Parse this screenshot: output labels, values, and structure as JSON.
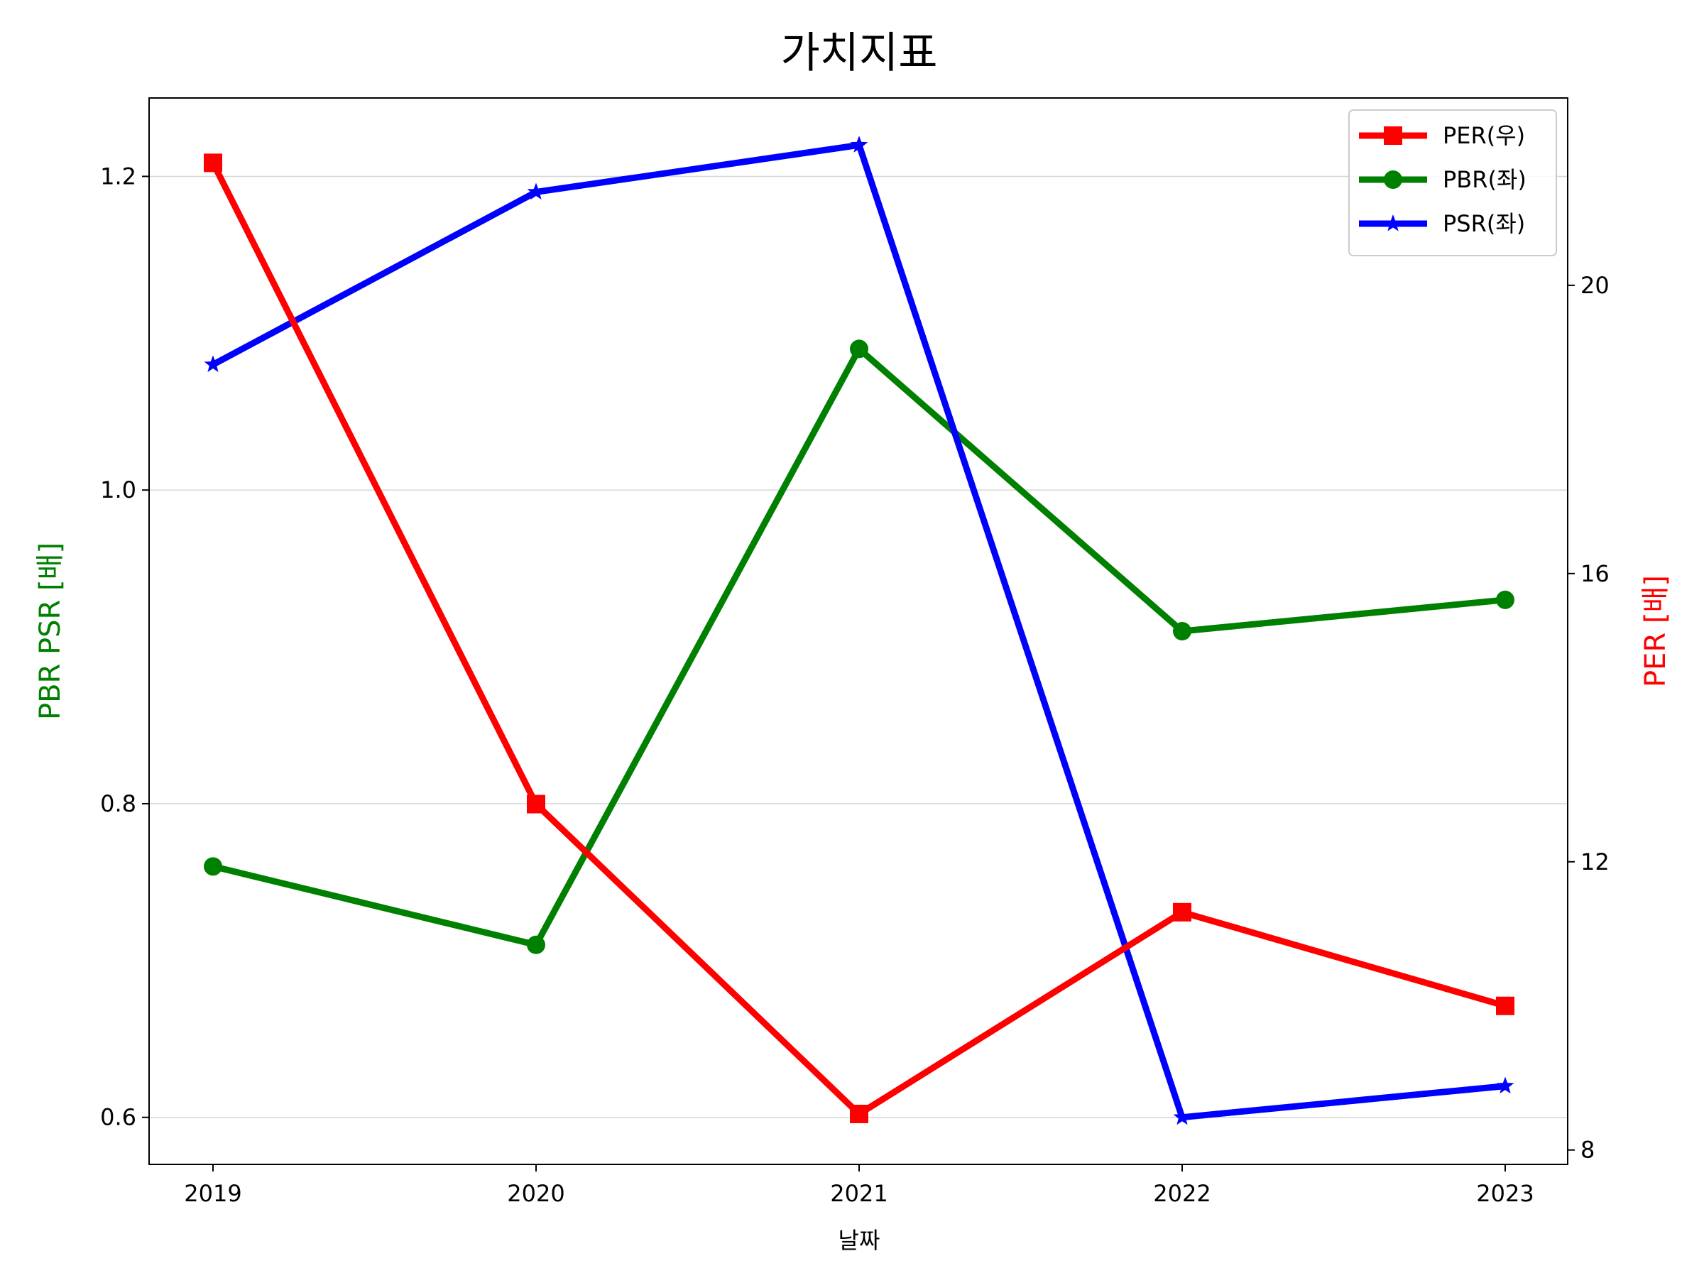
{
  "chart_data": {
    "type": "line",
    "title": "가치지표",
    "xlabel": "날짜",
    "ylabel_left": "PBR PSR [배]",
    "ylabel_right": "PER [배]",
    "categories": [
      "2019",
      "2020",
      "2021",
      "2022",
      "2023"
    ],
    "y_left": {
      "ticks": [
        "0.6",
        "0.8",
        "1.0",
        "1.2"
      ],
      "lim": [
        0.57,
        1.25
      ]
    },
    "y_right": {
      "ticks": [
        "8",
        "12",
        "16",
        "20"
      ],
      "lim": [
        7.8,
        22.6
      ]
    },
    "grid": "horizontal",
    "legend": "top-right",
    "series": [
      {
        "name": "PER(우)",
        "axis": "right",
        "color": "#ff0000",
        "marker": "square",
        "values": [
          21.7,
          12.8,
          8.5,
          11.3,
          10.0
        ]
      },
      {
        "name": "PBR(좌)",
        "axis": "left",
        "color": "#008000",
        "marker": "circle",
        "values": [
          0.76,
          0.71,
          1.09,
          0.91,
          0.93
        ]
      },
      {
        "name": "PSR(좌)",
        "axis": "left",
        "color": "#0000ff",
        "marker": "star",
        "values": [
          1.08,
          1.19,
          1.22,
          0.6,
          0.62
        ]
      }
    ],
    "label_colors": {
      "left": "#008000",
      "right": "#ff0000"
    }
  }
}
